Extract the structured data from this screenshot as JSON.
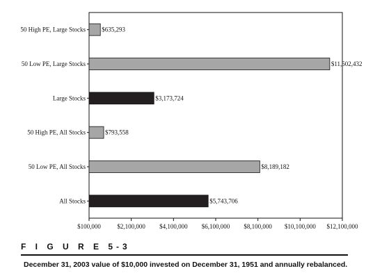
{
  "chart_data": {
    "type": "bar",
    "orientation": "horizontal",
    "categories": [
      "50 High PE, Large Stocks",
      "50 Low PE, Large Stocks",
      "Large Stocks",
      "50 High PE, All Stocks",
      "50 Low PE, All Stocks",
      "All Stocks"
    ],
    "values": [
      635293,
      11502432,
      3173724,
      793558,
      8189182,
      5743706
    ],
    "value_labels": [
      "$635,293",
      "$11,502,432",
      "$3,173,724",
      "$793,558",
      "$8,189,182",
      "$5,743,706"
    ],
    "bar_colors": [
      "#a6a6a6",
      "#a6a6a6",
      "#231f20",
      "#a6a6a6",
      "#a6a6a6",
      "#231f20"
    ],
    "xlim": [
      100000,
      12100000
    ],
    "x_ticks": [
      100000,
      2100000,
      4100000,
      6100000,
      8100000,
      10100000,
      12100000
    ],
    "x_tick_labels": [
      "$100,000",
      "$2,100,000",
      "$4,100,000",
      "$6,100,000",
      "$8,100,000",
      "$10,100,000",
      "$12,100,000"
    ],
    "grid": false,
    "legend": "none",
    "title": "",
    "xlabel": "",
    "ylabel": ""
  },
  "figure": {
    "label": "F I G U R E  5-3",
    "caption": "December 31, 2003 value of $10,000 invested on December 31, 1951 and annually rebalanced."
  }
}
